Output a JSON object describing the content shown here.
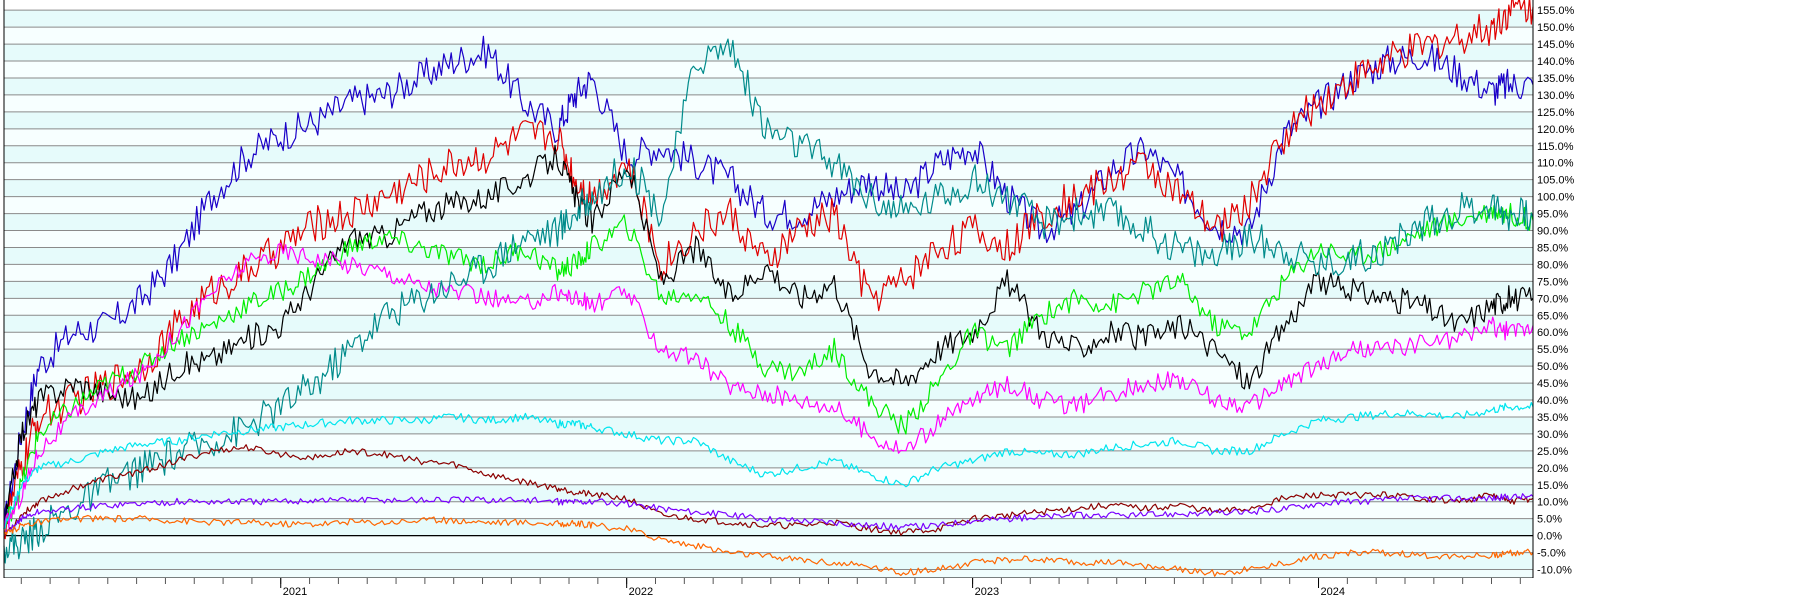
{
  "chart_data": {
    "type": "line",
    "title": "",
    "xlabel": "",
    "ylabel": "",
    "ylim": [
      -12.5,
      158
    ],
    "ytick_values": [
      -10,
      -5,
      0,
      5,
      10,
      15,
      20,
      25,
      30,
      35,
      40,
      45,
      50,
      55,
      60,
      65,
      70,
      75,
      80,
      85,
      90,
      95,
      100,
      105,
      110,
      115,
      120,
      125,
      130,
      135,
      140,
      145,
      150,
      155
    ],
    "ytick_labels": [
      "-10.0%",
      "-5.0%",
      "0.0%",
      "5.0%",
      "10.0%",
      "15.0%",
      "20.0%",
      "25.0%",
      "30.0%",
      "35.0%",
      "40.0%",
      "45.0%",
      "50.0%",
      "55.0%",
      "60.0%",
      "65.0%",
      "70.0%",
      "75.0%",
      "80.0%",
      "85.0%",
      "90.0%",
      "95.0%",
      "100.0%",
      "105.0%",
      "110.0%",
      "115.0%",
      "120.0%",
      "125.0%",
      "130.0%",
      "135.0%",
      "140.0%",
      "145.0%",
      "150.0%",
      "155.0%"
    ],
    "xlim": [
      2020.2,
      2024.62
    ],
    "xtick_labels": [
      {
        "value": 2021,
        "label": "2021"
      },
      {
        "value": 2022,
        "label": "2022"
      },
      {
        "value": 2023,
        "label": "2023"
      },
      {
        "value": 2024,
        "label": "2024"
      }
    ],
    "grid": true,
    "zero_line": 0,
    "legend": "none",
    "series": [
      {
        "color": "#1a00c8",
        "x": [
          2020.2,
          2020.25,
          2020.3,
          2020.4,
          2020.5,
          2020.6,
          2020.7,
          2020.8,
          2020.9,
          2021.0,
          2021.1,
          2021.2,
          2021.3,
          2021.4,
          2021.5,
          2021.6,
          2021.7,
          2021.8,
          2021.85,
          2021.9,
          2022.0,
          2022.1,
          2022.2,
          2022.3,
          2022.4,
          2022.5,
          2022.6,
          2022.7,
          2022.8,
          2022.9,
          2023.0,
          2023.1,
          2023.2,
          2023.3,
          2023.4,
          2023.5,
          2023.6,
          2023.7,
          2023.8,
          2023.9,
          2024.0,
          2024.1,
          2024.2,
          2024.3,
          2024.4,
          2024.5,
          2024.55,
          2024.62
        ],
        "y": [
          2,
          30,
          50,
          60,
          62,
          70,
          82,
          100,
          112,
          118,
          122,
          128,
          130,
          135,
          140,
          143,
          128,
          120,
          130,
          135,
          112,
          115,
          110,
          105,
          95,
          95,
          100,
          105,
          100,
          110,
          115,
          100,
          90,
          95,
          108,
          114,
          104,
          92,
          90,
          118,
          127,
          135,
          140,
          142,
          137,
          131,
          133,
          133
        ]
      },
      {
        "color": "#e00000",
        "x": [
          2020.2,
          2020.25,
          2020.3,
          2020.4,
          2020.5,
          2020.6,
          2020.7,
          2020.8,
          2020.9,
          2021.0,
          2021.1,
          2021.2,
          2021.3,
          2021.4,
          2021.5,
          2021.6,
          2021.7,
          2021.8,
          2021.85,
          2021.9,
          2022.0,
          2022.1,
          2022.2,
          2022.3,
          2022.4,
          2022.5,
          2022.6,
          2022.7,
          2022.8,
          2022.9,
          2023.0,
          2023.1,
          2023.2,
          2023.3,
          2023.4,
          2023.5,
          2023.6,
          2023.7,
          2023.8,
          2023.9,
          2024.0,
          2024.1,
          2024.2,
          2024.3,
          2024.4,
          2024.5,
          2024.55,
          2024.62
        ],
        "y": [
          2,
          20,
          35,
          40,
          45,
          50,
          62,
          72,
          78,
          85,
          92,
          95,
          100,
          105,
          110,
          112,
          118,
          118,
          105,
          100,
          110,
          80,
          90,
          95,
          80,
          90,
          95,
          70,
          75,
          85,
          90,
          85,
          95,
          100,
          105,
          110,
          100,
          90,
          98,
          118,
          128,
          135,
          140,
          144,
          147,
          150,
          155,
          156
        ]
      },
      {
        "color": "#000000",
        "x": [
          2020.2,
          2020.25,
          2020.3,
          2020.4,
          2020.5,
          2020.6,
          2020.7,
          2020.8,
          2020.9,
          2021.0,
          2021.1,
          2021.2,
          2021.3,
          2021.4,
          2021.5,
          2021.6,
          2021.7,
          2021.8,
          2021.85,
          2021.9,
          2022.0,
          2022.1,
          2022.2,
          2022.3,
          2022.4,
          2022.5,
          2022.6,
          2022.7,
          2022.8,
          2022.9,
          2023.0,
          2023.1,
          2023.2,
          2023.3,
          2023.4,
          2023.5,
          2023.6,
          2023.7,
          2023.8,
          2023.9,
          2024.0,
          2024.1,
          2024.2,
          2024.3,
          2024.4,
          2024.5,
          2024.55,
          2024.62
        ],
        "y": [
          2,
          30,
          40,
          45,
          42,
          40,
          50,
          52,
          58,
          62,
          75,
          88,
          88,
          95,
          98,
          100,
          105,
          112,
          100,
          92,
          110,
          75,
          85,
          70,
          80,
          70,
          75,
          50,
          45,
          55,
          60,
          75,
          60,
          55,
          60,
          58,
          62,
          55,
          45,
          62,
          75,
          72,
          70,
          68,
          62,
          68,
          70,
          70
        ]
      },
      {
        "color": "#00ee00",
        "x": [
          2020.2,
          2020.25,
          2020.3,
          2020.4,
          2020.5,
          2020.6,
          2020.7,
          2020.8,
          2020.9,
          2021.0,
          2021.1,
          2021.2,
          2021.3,
          2021.4,
          2021.5,
          2021.6,
          2021.7,
          2021.8,
          2021.85,
          2021.9,
          2022.0,
          2022.1,
          2022.2,
          2022.3,
          2022.4,
          2022.5,
          2022.6,
          2022.7,
          2022.8,
          2022.9,
          2023.0,
          2023.1,
          2023.2,
          2023.3,
          2023.4,
          2023.5,
          2023.6,
          2023.7,
          2023.8,
          2023.9,
          2024.0,
          2024.1,
          2024.2,
          2024.3,
          2024.4,
          2024.5,
          2024.55,
          2024.62
        ],
        "y": [
          2,
          15,
          30,
          38,
          45,
          50,
          58,
          62,
          68,
          72,
          78,
          85,
          88,
          85,
          82,
          80,
          85,
          78,
          80,
          85,
          92,
          70,
          72,
          62,
          50,
          48,
          55,
          40,
          32,
          45,
          60,
          55,
          65,
          70,
          68,
          72,
          75,
          62,
          60,
          75,
          85,
          82,
          85,
          90,
          93,
          96,
          95,
          93
        ]
      },
      {
        "color": "#ff00ff",
        "x": [
          2020.2,
          2020.25,
          2020.3,
          2020.4,
          2020.5,
          2020.6,
          2020.7,
          2020.8,
          2020.9,
          2021.0,
          2021.1,
          2021.2,
          2021.3,
          2021.4,
          2021.5,
          2021.6,
          2021.7,
          2021.8,
          2021.85,
          2021.9,
          2022.0,
          2022.1,
          2022.2,
          2022.3,
          2022.4,
          2022.5,
          2022.6,
          2022.7,
          2022.8,
          2022.9,
          2023.0,
          2023.1,
          2023.2,
          2023.3,
          2023.4,
          2023.5,
          2023.6,
          2023.7,
          2023.8,
          2023.9,
          2024.0,
          2024.1,
          2024.2,
          2024.3,
          2024.4,
          2024.5,
          2024.55,
          2024.62
        ],
        "y": [
          2,
          12,
          25,
          35,
          42,
          48,
          60,
          72,
          80,
          84,
          82,
          80,
          78,
          74,
          72,
          70,
          68,
          72,
          70,
          68,
          72,
          55,
          52,
          44,
          42,
          40,
          38,
          30,
          25,
          33,
          40,
          45,
          40,
          38,
          42,
          45,
          46,
          40,
          38,
          45,
          50,
          55,
          55,
          57,
          58,
          62,
          60,
          62
        ]
      },
      {
        "color": "#008b8b",
        "x": [
          2020.2,
          2020.25,
          2020.3,
          2020.4,
          2020.5,
          2020.6,
          2020.7,
          2020.8,
          2020.9,
          2021.0,
          2021.1,
          2021.2,
          2021.3,
          2021.4,
          2021.5,
          2021.6,
          2021.7,
          2021.8,
          2021.85,
          2021.9,
          2022.0,
          2022.1,
          2022.2,
          2022.3,
          2022.4,
          2022.5,
          2022.6,
          2022.7,
          2022.8,
          2022.9,
          2023.0,
          2023.1,
          2023.2,
          2023.3,
          2023.4,
          2023.5,
          2023.6,
          2023.7,
          2023.8,
          2023.9,
          2024.0,
          2024.1,
          2024.2,
          2024.3,
          2024.4,
          2024.5,
          2024.55,
          2024.62
        ],
        "y": [
          -3,
          -2,
          2,
          8,
          15,
          20,
          24,
          28,
          32,
          38,
          45,
          55,
          65,
          70,
          75,
          80,
          88,
          90,
          95,
          100,
          110,
          95,
          140,
          145,
          120,
          115,
          110,
          100,
          95,
          100,
          105,
          100,
          92,
          95,
          95,
          90,
          85,
          82,
          88,
          85,
          80,
          82,
          85,
          92,
          96,
          98,
          95,
          94
        ]
      },
      {
        "color": "#00e5ee",
        "x": [
          2020.2,
          2020.25,
          2020.3,
          2020.4,
          2020.5,
          2020.6,
          2020.7,
          2020.8,
          2020.9,
          2021.0,
          2021.1,
          2021.2,
          2021.3,
          2021.4,
          2021.5,
          2021.6,
          2021.7,
          2021.8,
          2021.85,
          2021.9,
          2022.0,
          2022.1,
          2022.2,
          2022.3,
          2022.4,
          2022.5,
          2022.6,
          2022.7,
          2022.8,
          2022.9,
          2023.0,
          2023.1,
          2023.2,
          2023.3,
          2023.4,
          2023.5,
          2023.6,
          2023.7,
          2023.8,
          2023.9,
          2024.0,
          2024.1,
          2024.2,
          2024.3,
          2024.4,
          2024.5,
          2024.55,
          2024.62
        ],
        "y": [
          2,
          15,
          20,
          22,
          25,
          27,
          28,
          30,
          31,
          32,
          33,
          34,
          34,
          34,
          35,
          34,
          35,
          33,
          33,
          32,
          30,
          28,
          28,
          22,
          18,
          20,
          22,
          18,
          15,
          20,
          22,
          25,
          24,
          24,
          26,
          27,
          28,
          25,
          25,
          30,
          34,
          35,
          36,
          36,
          35,
          37,
          38,
          38
        ]
      },
      {
        "color": "#8b0000",
        "x": [
          2020.2,
          2020.25,
          2020.3,
          2020.4,
          2020.5,
          2020.6,
          2020.7,
          2020.8,
          2020.9,
          2021.0,
          2021.1,
          2021.2,
          2021.3,
          2021.4,
          2021.5,
          2021.6,
          2021.7,
          2021.8,
          2021.85,
          2021.9,
          2022.0,
          2022.1,
          2022.2,
          2022.3,
          2022.4,
          2022.5,
          2022.6,
          2022.7,
          2022.8,
          2022.9,
          2023.0,
          2023.1,
          2023.2,
          2023.3,
          2023.4,
          2023.5,
          2023.6,
          2023.7,
          2023.8,
          2023.9,
          2024.0,
          2024.1,
          2024.2,
          2024.3,
          2024.4,
          2024.5,
          2024.55,
          2024.62
        ],
        "y": [
          0,
          6,
          10,
          14,
          17,
          19,
          22,
          25,
          26,
          24,
          23,
          25,
          24,
          22,
          21,
          18,
          16,
          14,
          13,
          12,
          11,
          6,
          5,
          4,
          3,
          3,
          4,
          2,
          1,
          2,
          5,
          6,
          7,
          8,
          9,
          8,
          9,
          7,
          8,
          11,
          12,
          12,
          12,
          11,
          10,
          12,
          10,
          11
        ]
      },
      {
        "color": "#7b00ff",
        "x": [
          2020.2,
          2020.25,
          2020.3,
          2020.4,
          2020.5,
          2020.6,
          2020.7,
          2020.8,
          2020.9,
          2021.0,
          2021.1,
          2021.2,
          2021.3,
          2021.4,
          2021.5,
          2021.6,
          2021.7,
          2021.8,
          2021.85,
          2021.9,
          2022.0,
          2022.1,
          2022.2,
          2022.3,
          2022.4,
          2022.5,
          2022.6,
          2022.7,
          2022.8,
          2022.9,
          2023.0,
          2023.1,
          2023.2,
          2023.3,
          2023.4,
          2023.5,
          2023.6,
          2023.7,
          2023.8,
          2023.9,
          2024.0,
          2024.1,
          2024.2,
          2024.3,
          2024.4,
          2024.5,
          2024.55,
          2024.62
        ],
        "y": [
          0,
          5,
          7,
          8,
          9,
          9.5,
          10,
          10,
          10,
          10,
          10.5,
          10.5,
          10.5,
          10.5,
          10.5,
          10.5,
          10.5,
          10,
          10,
          10,
          9.5,
          8,
          7,
          6,
          5,
          4.5,
          4,
          3,
          2.5,
          3,
          4.5,
          5,
          5.5,
          6,
          6,
          6,
          6.5,
          6.5,
          7,
          8,
          9.5,
          10,
          10.5,
          11,
          11,
          11,
          11.5,
          11.5
        ]
      },
      {
        "color": "#ff6600",
        "x": [
          2020.2,
          2020.25,
          2020.3,
          2020.4,
          2020.5,
          2020.6,
          2020.7,
          2020.8,
          2020.9,
          2021.0,
          2021.1,
          2021.2,
          2021.3,
          2021.4,
          2021.5,
          2021.6,
          2021.7,
          2021.8,
          2021.85,
          2021.9,
          2022.0,
          2022.1,
          2022.2,
          2022.3,
          2022.4,
          2022.5,
          2022.6,
          2022.7,
          2022.8,
          2022.9,
          2023.0,
          2023.1,
          2023.2,
          2023.3,
          2023.4,
          2023.5,
          2023.6,
          2023.7,
          2023.8,
          2023.9,
          2024.0,
          2024.1,
          2024.2,
          2024.3,
          2024.4,
          2024.5,
          2024.55,
          2024.62
        ],
        "y": [
          0,
          3,
          4,
          5,
          5,
          5,
          4.5,
          4,
          4,
          3.5,
          3.5,
          4,
          4,
          4.5,
          4.5,
          4,
          4,
          3.5,
          3.5,
          3,
          2,
          -1,
          -3,
          -5,
          -6,
          -7,
          -8,
          -9,
          -11,
          -10,
          -8,
          -7,
          -7,
          -8,
          -8,
          -9,
          -10,
          -11,
          -10,
          -8,
          -6,
          -5,
          -5,
          -6,
          -6,
          -6,
          -5,
          -5
        ]
      }
    ]
  }
}
